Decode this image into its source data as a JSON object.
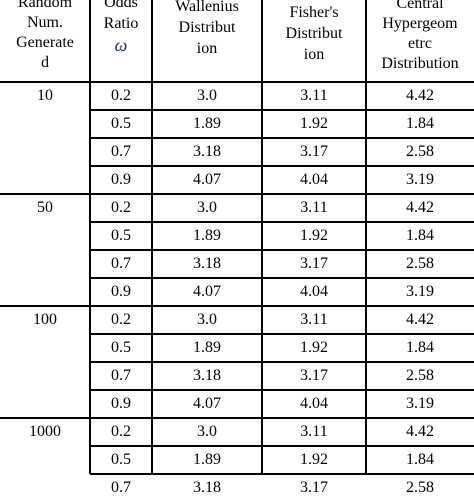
{
  "headers": {
    "col1": [
      "Random",
      "Num.",
      "Generate",
      "d"
    ],
    "col2": [
      "Odds",
      "Ratio",
      "ω"
    ],
    "col3": [
      "Wallenius",
      "Distribut",
      "ion"
    ],
    "col4": [
      "Fisher's",
      "Distribut",
      "ion"
    ],
    "col5": [
      "Central",
      "Hypergeom",
      "etrc",
      "Distribution"
    ]
  },
  "groups": [
    {
      "num": "10",
      "rows": [
        {
          "odds": "0.2",
          "w": "3.0",
          "f": "3.11",
          "c": "4.42"
        },
        {
          "odds": "0.5",
          "w": "1.89",
          "f": "1.92",
          "c": "1.84"
        },
        {
          "odds": "0.7",
          "w": "3.18",
          "f": "3.17",
          "c": "2.58"
        },
        {
          "odds": "0.9",
          "w": "4.07",
          "f": "4.04",
          "c": "3.19"
        }
      ]
    },
    {
      "num": "50",
      "rows": [
        {
          "odds": "0.2",
          "w": "3.0",
          "f": "3.11",
          "c": "4.42"
        },
        {
          "odds": "0.5",
          "w": "1.89",
          "f": "1.92",
          "c": "1.84"
        },
        {
          "odds": "0.7",
          "w": "3.18",
          "f": "3.17",
          "c": "2.58"
        },
        {
          "odds": "0.9",
          "w": "4.07",
          "f": "4.04",
          "c": "3.19"
        }
      ]
    },
    {
      "num": "100",
      "rows": [
        {
          "odds": "0.2",
          "w": "3.0",
          "f": "3.11",
          "c": "4.42"
        },
        {
          "odds": "0.5",
          "w": "1.89",
          "f": "1.92",
          "c": "1.84"
        },
        {
          "odds": "0.7",
          "w": "3.18",
          "f": "3.17",
          "c": "2.58"
        },
        {
          "odds": "0.9",
          "w": "4.07",
          "f": "4.04",
          "c": "3.19"
        }
      ]
    },
    {
      "num": "1000",
      "rows": [
        {
          "odds": "0.2",
          "w": "3.0",
          "f": "3.11",
          "c": "4.42"
        },
        {
          "odds": "0.5",
          "w": "1.89",
          "f": "1.92",
          "c": "1.84"
        },
        {
          "odds": "0.7",
          "w": "3.18",
          "f": "3.17",
          "c": "2.58"
        }
      ]
    }
  ]
}
